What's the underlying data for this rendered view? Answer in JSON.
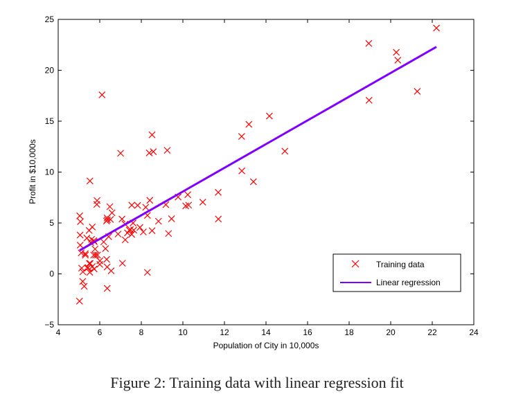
{
  "caption": "Figure 2: Training data with linear regression fit",
  "chart_data": {
    "type": "scatter",
    "title": "",
    "xlabel": "Population of City in 10,000s",
    "ylabel": "Profit in $10,000s",
    "xlim": [
      4,
      24
    ],
    "ylim": [
      -5,
      25
    ],
    "xticks": [
      "4",
      "6",
      "8",
      "10",
      "12",
      "14",
      "16",
      "18",
      "20",
      "22",
      "24"
    ],
    "yticks": [
      "25",
      "20",
      "15",
      "10",
      "5",
      "0",
      "−5"
    ],
    "xtick_values": [
      4,
      6,
      8,
      10,
      12,
      14,
      16,
      18,
      20,
      22,
      24
    ],
    "ytick_values": [
      25,
      20,
      15,
      10,
      5,
      0,
      -5
    ],
    "grid": false,
    "legend_position": "bottom-right",
    "series": [
      {
        "name": "Training data",
        "kind": "scatter",
        "marker": "x",
        "color": "#ff0000",
        "points": [
          [
            6.1101,
            17.592
          ],
          [
            5.5277,
            9.1302
          ],
          [
            8.5186,
            13.662
          ],
          [
            7.0032,
            11.854
          ],
          [
            5.8598,
            6.8233
          ],
          [
            8.3829,
            11.886
          ],
          [
            7.4764,
            4.3483
          ],
          [
            8.5781,
            12.0
          ],
          [
            6.4862,
            6.5987
          ],
          [
            5.0546,
            3.8166
          ],
          [
            5.7107,
            3.2522
          ],
          [
            14.164,
            15.505
          ],
          [
            5.734,
            3.1551
          ],
          [
            8.4084,
            7.2258
          ],
          [
            5.6407,
            0.71618
          ],
          [
            5.3794,
            3.5129
          ],
          [
            6.3654,
            5.3048
          ],
          [
            5.1301,
            0.56077
          ],
          [
            6.4296,
            3.6518
          ],
          [
            7.0708,
            5.3893
          ],
          [
            6.1891,
            3.1386
          ],
          [
            20.27,
            21.767
          ],
          [
            5.4901,
            4.263
          ],
          [
            6.3261,
            5.1875
          ],
          [
            5.5649,
            3.0825
          ],
          [
            18.945,
            22.638
          ],
          [
            12.828,
            13.501
          ],
          [
            10.957,
            7.0467
          ],
          [
            13.176,
            14.692
          ],
          [
            22.203,
            24.147
          ],
          [
            5.2524,
            -1.22
          ],
          [
            6.5894,
            5.9966
          ],
          [
            9.2482,
            12.134
          ],
          [
            5.8918,
            1.8495
          ],
          [
            8.2111,
            6.5426
          ],
          [
            7.9334,
            4.5623
          ],
          [
            8.0959,
            4.1164
          ],
          [
            5.6063,
            3.3928
          ],
          [
            12.836,
            10.117
          ],
          [
            6.3534,
            5.4974
          ],
          [
            5.4069,
            0.55657
          ],
          [
            6.8825,
            3.9115
          ],
          [
            11.708,
            5.3854
          ],
          [
            5.7737,
            2.4406
          ],
          [
            7.8247,
            6.7318
          ],
          [
            7.0931,
            1.0463
          ],
          [
            5.0702,
            5.1337
          ],
          [
            5.8014,
            1.844
          ],
          [
            11.7,
            8.0043
          ],
          [
            5.5416,
            1.0179
          ],
          [
            7.5402,
            6.7504
          ],
          [
            5.3077,
            1.8396
          ],
          [
            7.4239,
            4.2885
          ],
          [
            7.6031,
            4.9981
          ],
          [
            6.3328,
            1.4233
          ],
          [
            6.3589,
            -1.4211
          ],
          [
            6.2742,
            2.4756
          ],
          [
            5.6397,
            4.6042
          ],
          [
            9.3102,
            3.9624
          ],
          [
            9.4536,
            5.4141
          ],
          [
            8.8254,
            5.1694
          ],
          [
            5.1793,
            -0.74279
          ],
          [
            21.279,
            17.929
          ],
          [
            14.908,
            12.054
          ],
          [
            18.959,
            17.054
          ],
          [
            7.2182,
            4.8852
          ],
          [
            8.2951,
            5.7442
          ],
          [
            10.236,
            7.7754
          ],
          [
            5.4994,
            1.0173
          ],
          [
            20.341,
            20.992
          ],
          [
            10.136,
            6.6799
          ],
          [
            7.3345,
            4.0259
          ],
          [
            6.0062,
            1.2784
          ],
          [
            7.2259,
            3.3411
          ],
          [
            5.0269,
            -2.6807
          ],
          [
            6.5479,
            0.29678
          ],
          [
            7.5386,
            3.8845
          ],
          [
            5.0365,
            5.7014
          ],
          [
            10.274,
            6.7526
          ],
          [
            5.1077,
            2.0576
          ],
          [
            5.7292,
            0.47953
          ],
          [
            5.1884,
            0.20421
          ],
          [
            6.3557,
            0.67861
          ],
          [
            9.7687,
            7.5435
          ],
          [
            6.5159,
            5.3436
          ],
          [
            8.5172,
            4.2415
          ],
          [
            9.1802,
            6.7981
          ],
          [
            6.002,
            0.92695
          ],
          [
            5.5204,
            0.152
          ],
          [
            5.0594,
            2.8214
          ],
          [
            5.7077,
            1.8451
          ],
          [
            7.6366,
            4.2959
          ],
          [
            5.8707,
            7.2029
          ],
          [
            5.3054,
            1.9869
          ],
          [
            8.2934,
            0.14454
          ],
          [
            13.394,
            9.0551
          ],
          [
            5.4369,
            0.61705
          ]
        ]
      },
      {
        "name": "Linear regression",
        "kind": "line",
        "color": "#7f00ff",
        "points": [
          [
            5.03,
            2.3
          ],
          [
            22.2,
            22.3
          ]
        ]
      }
    ]
  }
}
